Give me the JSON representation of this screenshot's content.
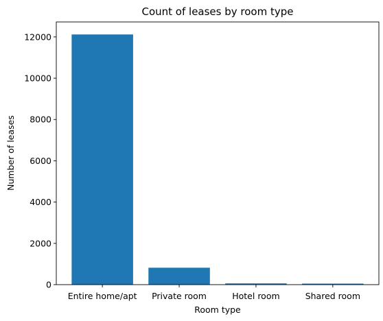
{
  "chart_data": {
    "type": "bar",
    "title": "Count of leases by room type",
    "xlabel": "Room type",
    "ylabel": "Number of leases",
    "categories": [
      "Entire home/apt",
      "Private room",
      "Hotel room",
      "Shared room"
    ],
    "values": [
      12120,
      820,
      60,
      50
    ],
    "ylim": [
      0,
      12726
    ],
    "yticks": [
      0,
      2000,
      4000,
      6000,
      8000,
      10000,
      12000
    ],
    "grid": false,
    "bar_color": "#1f77b4"
  }
}
